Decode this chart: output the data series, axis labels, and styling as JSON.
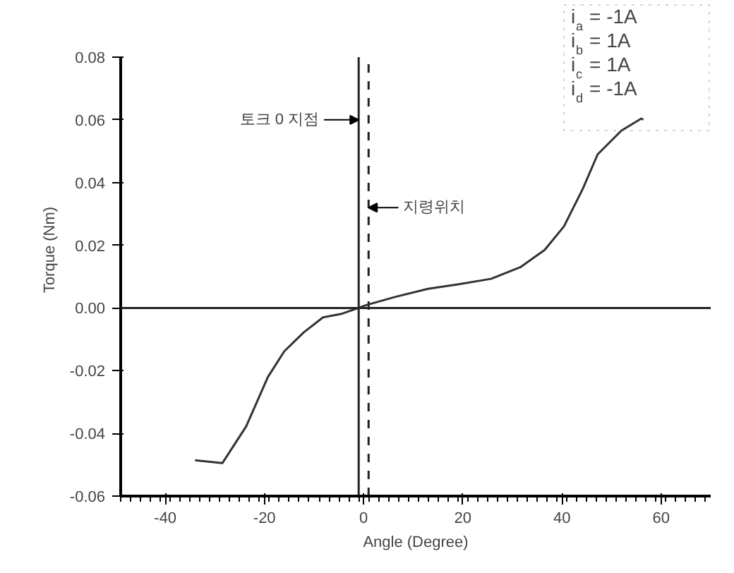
{
  "chart_data": {
    "type": "line",
    "xlabel": "Angle (Degree)",
    "ylabel": "Torque (Nm)",
    "x": [
      -34,
      -28.5,
      -23.7,
      -19.3,
      -16,
      -12.1,
      -8.2,
      -4.3,
      0.5,
      6.3,
      13,
      19,
      25.7,
      31.6,
      36.5,
      40.4,
      44.2,
      47.2,
      52,
      56,
      56.4
    ],
    "series": [
      {
        "color": "#333333",
        "values": [
          -0.0486,
          -0.0495,
          -0.0378,
          -0.022,
          -0.0138,
          -0.0078,
          -0.003,
          -0.0018,
          0.0009,
          0.0035,
          0.0061,
          0.0075,
          0.0093,
          0.013,
          0.0185,
          0.026,
          0.038,
          0.049,
          0.0566,
          0.0604,
          0.06
        ]
      }
    ],
    "xlim": [
      -49,
      70
    ],
    "ylim": [
      -0.06,
      0.08
    ],
    "xticks": [
      -40,
      -20,
      0,
      20,
      40,
      60
    ],
    "yticks": [
      {
        "value": -0.06,
        "label": "-0.06"
      },
      {
        "value": -0.04,
        "label": "-0.04"
      },
      {
        "value": -0.02,
        "label": "-0.02"
      },
      {
        "value": 0,
        "label": "0.00"
      },
      {
        "value": 0.02,
        "label": "0.02"
      },
      {
        "value": 0.04,
        "label": "0.04"
      },
      {
        "value": 0.06,
        "label": "0.06"
      },
      {
        "value": 0.08,
        "label": "0.08"
      }
    ],
    "ref_lines": [
      {
        "axis": "y",
        "value": 0,
        "color": "#222222",
        "line_style": "solid"
      },
      {
        "axis": "x",
        "value": -1,
        "color": "#222222",
        "line_style": "solid"
      },
      {
        "axis": "x",
        "value": 1,
        "color": "#222222",
        "line_style": "dashed"
      }
    ],
    "annotations": [
      {
        "text": "토크 0 지점",
        "x": -1,
        "y": 0.06
      },
      {
        "text": "지령위치",
        "x": 1,
        "y": 0.032
      },
      "i$_{a}$ = -1A",
      "i$_{b}$ = 1A",
      "i$_{c}$ = 1A",
      "i$_{d}$ = -1A"
    ],
    "grid": false,
    "marker": "none",
    "line_style": "solid"
  }
}
